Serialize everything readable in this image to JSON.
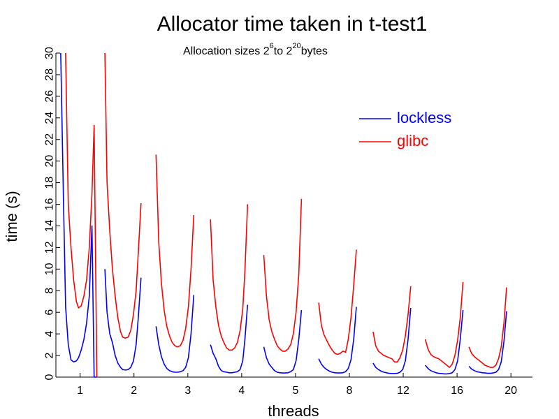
{
  "chart_data": {
    "type": "line",
    "title": "Allocator time taken in t-test1",
    "subtitle": {
      "prefix": "Allocation sizes 2",
      "exp1": "6",
      "middle": "to 2",
      "exp2": "20",
      "suffix": "bytes"
    },
    "xlabel": "threads",
    "ylabel": "time (s)",
    "ylim": [
      0,
      30
    ],
    "yticks": [
      "0",
      "2",
      "4",
      "6",
      "8",
      "10",
      "12",
      "14",
      "16",
      "18",
      "20",
      "22",
      "24",
      "26",
      "28",
      "30"
    ],
    "categories": [
      "1",
      "2",
      "3",
      "4",
      "5",
      "8",
      "12",
      "16",
      "20"
    ],
    "legend_position": "top-right",
    "grid": false,
    "x_description": "Each thread-count group contains a U-shaped curve over allocation sizes 2^6 to 2^20 bytes (15 sizes); x positions are on the threads axis.",
    "series": [
      {
        "name": "lockless",
        "color": "#0000ff",
        "segments": [
          {
            "x": [
              0.64,
              0.69,
              0.73,
              0.78,
              0.83,
              0.88,
              0.93,
              0.97,
              1.02,
              1.07,
              1.12,
              1.17,
              1.22,
              1.26,
              1.31
            ],
            "y": [
              30,
              16.5,
              6.5,
              3.0,
              1.6,
              1.4,
              1.5,
              1.8,
              2.5,
              3.5,
              5.0,
              7.5,
              14.0,
              0,
              0
            ]
          },
          {
            "x": [
              1.46,
              1.5,
              1.55,
              1.6,
              1.65,
              1.7,
              1.75,
              1.79,
              1.84,
              1.89,
              1.94,
              1.99,
              2.04,
              2.08,
              2.13
            ],
            "y": [
              10.0,
              6.0,
              4.0,
              3.2,
              2.0,
              1.3,
              0.9,
              0.7,
              0.65,
              0.7,
              0.9,
              1.5,
              3.0,
              5.5,
              9.2
            ]
          },
          {
            "x": [
              2.41,
              2.46,
              2.51,
              2.56,
              2.61,
              2.66,
              2.71,
              2.76,
              2.81,
              2.86,
              2.91,
              2.96,
              3.01,
              3.06,
              3.11
            ],
            "y": [
              4.7,
              3.0,
              1.9,
              1.2,
              0.8,
              0.6,
              0.5,
              0.45,
              0.45,
              0.5,
              0.6,
              0.9,
              1.8,
              4.0,
              7.6
            ]
          },
          {
            "x": [
              3.42,
              3.47,
              3.52,
              3.57,
              3.62,
              3.67,
              3.72,
              3.77,
              3.82,
              3.87,
              3.92,
              3.97,
              4.02,
              4.06,
              4.11
            ],
            "y": [
              3.0,
              2.2,
              1.7,
              1.0,
              0.6,
              0.5,
              0.45,
              0.4,
              0.4,
              0.45,
              0.5,
              0.7,
              1.5,
              3.5,
              6.7
            ]
          },
          {
            "x": [
              4.41,
              4.46,
              4.51,
              4.56,
              4.61,
              4.66,
              4.71,
              4.76,
              4.81,
              4.86,
              4.91,
              4.96,
              5.01,
              5.06,
              5.11
            ],
            "y": [
              2.8,
              1.8,
              1.2,
              0.9,
              0.6,
              0.45,
              0.4,
              0.38,
              0.38,
              0.4,
              0.5,
              0.7,
              1.5,
              3.5,
              6.2
            ]
          },
          {
            "x": [
              5.43,
              5.48,
              5.53,
              5.58,
              5.63,
              5.68,
              5.73,
              5.78,
              5.83,
              5.88,
              5.93,
              5.98,
              6.03,
              6.08,
              6.13
            ],
            "y": [
              1.7,
              1.2,
              0.9,
              0.7,
              0.55,
              0.45,
              0.4,
              0.38,
              0.38,
              0.4,
              0.5,
              0.8,
              1.6,
              3.5,
              6.5
            ]
          },
          {
            "x": [
              6.44,
              6.49,
              6.54,
              6.59,
              6.64,
              6.69,
              6.74,
              6.79,
              6.84,
              6.89,
              6.94,
              6.99,
              7.04,
              7.09,
              7.14
            ],
            "y": [
              1.3,
              0.9,
              0.7,
              0.55,
              0.45,
              0.4,
              0.35,
              0.33,
              0.33,
              0.35,
              0.45,
              0.7,
              1.5,
              3.5,
              6.4
            ]
          },
          {
            "x": [
              7.41,
              7.46,
              7.51,
              7.56,
              7.61,
              7.66,
              7.71,
              7.76,
              7.81,
              7.86,
              7.91,
              7.96,
              8.01,
              8.06,
              8.11
            ],
            "y": [
              1.1,
              0.8,
              0.6,
              0.5,
              0.4,
              0.35,
              0.33,
              0.3,
              0.3,
              0.33,
              0.4,
              0.7,
              1.5,
              3.5,
              6.2
            ]
          },
          {
            "x": [
              8.22,
              8.27,
              8.32,
              8.37,
              8.42,
              8.47,
              8.52,
              8.57,
              8.62,
              8.67,
              8.72,
              8.77,
              8.82,
              8.87,
              8.92
            ],
            "y": [
              1.0,
              0.75,
              0.6,
              0.5,
              0.45,
              0.4,
              0.38,
              0.35,
              0.35,
              0.38,
              0.45,
              0.7,
              1.4,
              3.3,
              6.1
            ]
          }
        ]
      },
      {
        "name": "glibc",
        "color": "#ff0000",
        "segments": [
          {
            "x": [
              0.73,
              0.78,
              0.83,
              0.88,
              0.93,
              0.97,
              1.02,
              1.07,
              1.12,
              1.17,
              1.22,
              1.26,
              1.31
            ],
            "y": [
              30,
              16.0,
              12.0,
              9.0,
              7.0,
              6.4,
              6.6,
              7.5,
              9.0,
              12.0,
              17.0,
              23.3,
              0
            ]
          },
          {
            "x": [
              1.46,
              1.5,
              1.55,
              1.6,
              1.65,
              1.7,
              1.75,
              1.79,
              1.84,
              1.89,
              1.94,
              1.99,
              2.04,
              2.08,
              2.13
            ],
            "y": [
              30,
              18.0,
              13.5,
              10.0,
              7.5,
              5.5,
              4.2,
              3.7,
              3.6,
              3.7,
              4.3,
              5.8,
              8.0,
              11.5,
              16.1
            ]
          },
          {
            "x": [
              2.41,
              2.46,
              2.51,
              2.56,
              2.61,
              2.66,
              2.71,
              2.76,
              2.81,
              2.86,
              2.91,
              2.96,
              3.01,
              3.06,
              3.11
            ],
            "y": [
              20.6,
              12.5,
              8.7,
              6.2,
              4.7,
              3.8,
              3.2,
              2.9,
              2.8,
              2.9,
              3.4,
              4.5,
              6.5,
              10.0,
              15.0
            ]
          },
          {
            "x": [
              3.42,
              3.47,
              3.52,
              3.57,
              3.62,
              3.67,
              3.72,
              3.77,
              3.82,
              3.87,
              3.92,
              3.97,
              4.02,
              4.06,
              4.11
            ],
            "y": [
              14.6,
              9.0,
              6.5,
              4.8,
              3.8,
              3.2,
              2.7,
              2.5,
              2.5,
              2.7,
              3.2,
              4.3,
              6.3,
              9.8,
              16.0
            ]
          },
          {
            "x": [
              4.41,
              4.46,
              4.51,
              4.56,
              4.61,
              4.66,
              4.71,
              4.76,
              4.81,
              4.86,
              4.91,
              4.96,
              5.01,
              5.06,
              5.11
            ],
            "y": [
              11.3,
              7.5,
              5.3,
              4.2,
              3.5,
              2.9,
              2.6,
              2.4,
              2.4,
              2.6,
              3.0,
              4.0,
              6.0,
              9.5,
              16.5
            ]
          },
          {
            "x": [
              5.43,
              5.48,
              5.53,
              5.58,
              5.63,
              5.68,
              5.73,
              5.78,
              5.83,
              5.88,
              5.93,
              5.98,
              6.03,
              6.08,
              6.13
            ],
            "y": [
              6.9,
              4.8,
              3.9,
              3.4,
              2.9,
              2.5,
              2.2,
              2.1,
              2.2,
              2.4,
              2.3,
              3.5,
              5.5,
              8.5,
              11.8
            ]
          },
          {
            "x": [
              6.44,
              6.49,
              6.54,
              6.59,
              6.64,
              6.69,
              6.74,
              6.79,
              6.84,
              6.89,
              6.94,
              6.99,
              7.04,
              7.09,
              7.14
            ],
            "y": [
              4.2,
              2.9,
              2.4,
              2.2,
              2.0,
              1.9,
              1.8,
              1.7,
              1.4,
              1.4,
              1.8,
              2.5,
              3.8,
              5.8,
              8.4
            ]
          },
          {
            "x": [
              7.41,
              7.46,
              7.51,
              7.56,
              7.61,
              7.66,
              7.71,
              7.76,
              7.81,
              7.86,
              7.91,
              7.96,
              8.01,
              8.06,
              8.11
            ],
            "y": [
              3.5,
              2.6,
              2.1,
              1.9,
              1.8,
              1.7,
              1.5,
              1.3,
              1.1,
              0.9,
              1.2,
              2.0,
              3.4,
              5.5,
              8.8
            ]
          },
          {
            "x": [
              8.22,
              8.27,
              8.32,
              8.37,
              8.42,
              8.47,
              8.52,
              8.57,
              8.62,
              8.67,
              8.72,
              8.77,
              8.82,
              8.87,
              8.92
            ],
            "y": [
              2.8,
              2.2,
              1.9,
              1.7,
              1.5,
              1.3,
              1.1,
              1.0,
              0.9,
              0.9,
              1.1,
              1.7,
              2.8,
              5.0,
              8.3
            ]
          }
        ]
      }
    ]
  }
}
